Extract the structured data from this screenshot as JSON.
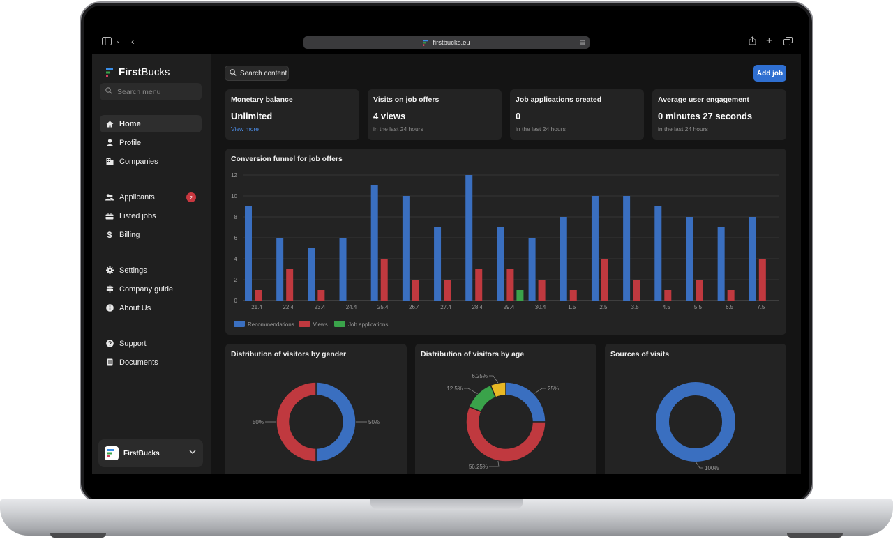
{
  "browser": {
    "url": "firstbucks.eu"
  },
  "sidebar": {
    "brand_bold": "First",
    "brand_rest": "Bucks",
    "search_placeholder": "Search menu",
    "items": [
      {
        "label": "Home",
        "icon": "home-icon"
      },
      {
        "label": "Profile",
        "icon": "user-icon"
      },
      {
        "label": "Companies",
        "icon": "building-icon"
      },
      {
        "label": "Applicants",
        "icon": "users-icon",
        "badge": "2"
      },
      {
        "label": "Listed jobs",
        "icon": "briefcase-icon"
      },
      {
        "label": "Billing",
        "icon": "dollar-icon"
      },
      {
        "label": "Settings",
        "icon": "gear-icon"
      },
      {
        "label": "Company guide",
        "icon": "signpost-icon"
      },
      {
        "label": "About Us",
        "icon": "info-icon"
      },
      {
        "label": "Support",
        "icon": "question-icon"
      },
      {
        "label": "Documents",
        "icon": "document-icon"
      }
    ],
    "company_name": "FirstBucks"
  },
  "header": {
    "search_label": "Search content",
    "add_job_label": "Add job"
  },
  "stats": [
    {
      "title": "Monetary balance",
      "value": "Unlimited",
      "link": "View more"
    },
    {
      "title": "Visits on job offers",
      "value": "4 views",
      "sub": "in the last 24 hours"
    },
    {
      "title": "Job applications created",
      "value": "0",
      "sub": "in the last 24 hours"
    },
    {
      "title": "Average user engagement",
      "value": "0 minutes 27 seconds",
      "sub": "in the last 24 hours"
    }
  ],
  "colors": {
    "blue": "#3a6fc0",
    "red": "#c0393f",
    "green": "#3aa34a",
    "yellow": "#e8b824",
    "accent": "#2f6fd1"
  },
  "chart_data": [
    {
      "type": "bar",
      "title": "Conversion funnel for job offers",
      "categories": [
        "21.4",
        "22.4",
        "23.4",
        "24.4",
        "25.4",
        "26.4",
        "27.4",
        "28.4",
        "29.4",
        "30.4",
        "1.5",
        "2.5",
        "3.5",
        "4.5",
        "5.5",
        "6.5",
        "7.5"
      ],
      "series": [
        {
          "name": "Recommendations",
          "values": [
            9,
            6,
            5,
            6,
            11,
            10,
            7,
            12,
            7,
            6,
            8,
            10,
            10,
            9,
            8,
            7,
            8
          ]
        },
        {
          "name": "Views",
          "values": [
            1,
            3,
            1,
            0,
            4,
            2,
            2,
            3,
            3,
            2,
            1,
            4,
            2,
            1,
            2,
            1,
            4
          ]
        },
        {
          "name": "Job applications",
          "values": [
            0,
            0,
            0,
            0,
            0,
            0,
            0,
            0,
            1,
            0,
            0,
            0,
            0,
            0,
            0,
            0,
            0
          ]
        }
      ],
      "ylim": [
        0,
        12
      ],
      "yticks": [
        0,
        2,
        4,
        6,
        8,
        10,
        12
      ],
      "grid": true,
      "legend": "bottom-left"
    },
    {
      "type": "pie",
      "title": "Distribution of visitors by gender",
      "values": [
        50,
        50
      ],
      "labels": [
        "50%",
        "50%"
      ],
      "slice_colors": [
        "#3a6fc0",
        "#c0393f"
      ]
    },
    {
      "type": "pie",
      "title": "Distribution of visitors by age",
      "values": [
        25,
        56.25,
        12.5,
        6.25
      ],
      "labels": [
        "25%",
        "56.25%",
        "12.5%",
        "6.25%"
      ],
      "slice_colors": [
        "#3a6fc0",
        "#c0393f",
        "#3aa34a",
        "#e8b824"
      ]
    },
    {
      "type": "pie",
      "title": "Sources of visits",
      "values": [
        100
      ],
      "labels": [
        "100%"
      ],
      "slice_colors": [
        "#3a6fc0"
      ]
    }
  ]
}
